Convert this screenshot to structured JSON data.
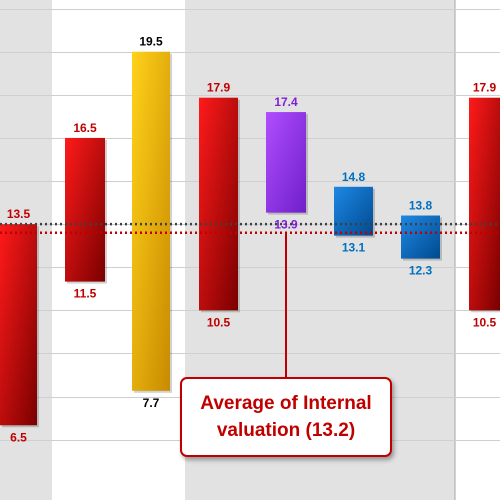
{
  "chart_data": {
    "type": "floating-bar",
    "ylim": [
      3.9,
      21.3
    ],
    "bars": [
      {
        "low": 6.5,
        "high": 13.5,
        "low_label": "6.5",
        "high_label": "13.5",
        "color": "#c00000",
        "label_color": "#c00000"
      },
      {
        "low": 11.5,
        "high": 16.5,
        "low_label": "11.5",
        "high_label": "16.5",
        "color": "#c00000",
        "label_color": "#c00000"
      },
      {
        "low": 7.7,
        "high": 19.5,
        "low_label": "7.7",
        "high_label": "19.5",
        "color": "#f5b800",
        "label_color": "#000000"
      },
      {
        "low": 10.5,
        "high": 17.9,
        "low_label": "10.5",
        "high_label": "17.9",
        "color": "#c00000",
        "label_color": "#c00000"
      },
      {
        "low": 13.9,
        "high": 17.4,
        "low_label": "13.9",
        "high_label": "17.4",
        "color": "#9933ff",
        "label_color": "#7f1fd6"
      },
      {
        "low": 13.1,
        "high": 14.8,
        "low_label": "13.1",
        "high_label": "14.8",
        "color": "#0070c0",
        "label_color": "#0070c0"
      },
      {
        "low": 12.3,
        "high": 13.8,
        "low_label": "12.3",
        "high_label": "13.8",
        "color": "#0070c0",
        "label_color": "#0070c0"
      },
      {
        "low": 10.5,
        "high": 17.9,
        "low_label": "10.5",
        "high_label": "17.9",
        "color": "#c00000",
        "label_color": "#c00000"
      }
    ],
    "reference_lines": [
      {
        "value": 13.2,
        "color": "#c00000"
      },
      {
        "value": 13.5,
        "color": "#404040"
      }
    ],
    "annotation": {
      "text": "Average of Internal valuation (13.2)",
      "value": 13.2,
      "color": "#c00000"
    },
    "grid": true,
    "colors": {
      "band": "#e2e2e2",
      "grid": "#cfcfcf"
    }
  }
}
